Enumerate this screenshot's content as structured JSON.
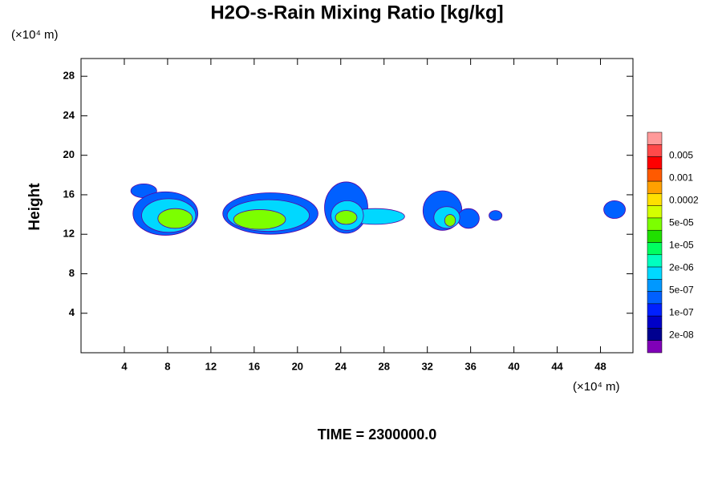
{
  "chart_data": {
    "type": "contour",
    "title": "H2O-s-Rain Mixing Ratio [kg/kg]",
    "y_axis_label": "Height",
    "y_unit": "(×10⁴ m)",
    "x_unit": "(×10⁴ m)",
    "footer": "TIME = 2300000.0",
    "xlim": [
      0,
      51
    ],
    "ylim": [
      0,
      29.8
    ],
    "xticks": [
      4,
      8,
      12,
      16,
      20,
      24,
      28,
      32,
      36,
      40,
      44,
      48
    ],
    "yticks": [
      4,
      8,
      12,
      16,
      20,
      24,
      28
    ],
    "colorbar": {
      "colors": [
        "#ff9a9a",
        "#ff4a4a",
        "#ff0000",
        "#ff5a00",
        "#ffa000",
        "#ffe000",
        "#d4ff00",
        "#7cff00",
        "#20e000",
        "#00ff60",
        "#00ffc0",
        "#00d8ff",
        "#0098ff",
        "#0060ff",
        "#0020ff",
        "#0000c8",
        "#000090",
        "#8000b8"
      ],
      "labels": [
        0.005,
        0.001,
        0.0002,
        {
          "value": 5e-05,
          "label": "5e-05"
        },
        {
          "value": 1e-05,
          "label": "1e-05"
        },
        {
          "value": 2e-06,
          "label": "2e-06"
        },
        {
          "value": 5e-07,
          "label": "5e-07"
        },
        {
          "value": 1e-07,
          "label": "1e-07"
        },
        {
          "value": 2e-08,
          "label": "2e-08"
        }
      ]
    },
    "cells": [
      {
        "x": 5.8,
        "y": 16.4,
        "rx": 1.2,
        "ry": 0.7,
        "color": "#0060ff"
      },
      {
        "x": 7.8,
        "y": 14.1,
        "rx": 3.0,
        "ry": 2.2,
        "color": "#0060ff"
      },
      {
        "x": 8.1,
        "y": 13.9,
        "rx": 2.5,
        "ry": 1.7,
        "color": "#00d8ff"
      },
      {
        "x": 8.7,
        "y": 13.6,
        "rx": 1.6,
        "ry": 1.0,
        "color": "#7cff00"
      },
      {
        "x": 17.5,
        "y": 14.1,
        "rx": 4.4,
        "ry": 2.1,
        "color": "#0060ff"
      },
      {
        "x": 17.3,
        "y": 13.9,
        "rx": 3.8,
        "ry": 1.6,
        "color": "#00d8ff"
      },
      {
        "x": 16.5,
        "y": 13.5,
        "rx": 2.4,
        "ry": 1.0,
        "color": "#7cff00"
      },
      {
        "x": 24.5,
        "y": 14.7,
        "rx": 2.0,
        "ry": 2.6,
        "color": "#0060ff"
      },
      {
        "x": 27.2,
        "y": 13.8,
        "rx": 2.7,
        "ry": 0.8,
        "color": "#00d8ff"
      },
      {
        "x": 24.6,
        "y": 13.9,
        "rx": 1.5,
        "ry": 1.5,
        "color": "#00d8ff"
      },
      {
        "x": 24.5,
        "y": 13.7,
        "rx": 1.0,
        "ry": 0.7,
        "color": "#7cff00"
      },
      {
        "x": 33.4,
        "y": 14.4,
        "rx": 1.8,
        "ry": 2.0,
        "color": "#0060ff"
      },
      {
        "x": 35.8,
        "y": 13.6,
        "rx": 1.0,
        "ry": 1.0,
        "color": "#0060ff"
      },
      {
        "x": 33.8,
        "y": 13.7,
        "rx": 1.2,
        "ry": 1.1,
        "color": "#00d8ff"
      },
      {
        "x": 34.1,
        "y": 13.4,
        "rx": 0.5,
        "ry": 0.6,
        "color": "#7cff00"
      },
      {
        "x": 38.3,
        "y": 13.9,
        "rx": 0.6,
        "ry": 0.5,
        "color": "#0060ff"
      },
      {
        "x": 49.3,
        "y": 14.5,
        "rx": 1.0,
        "ry": 0.9,
        "color": "#0060ff"
      }
    ]
  }
}
